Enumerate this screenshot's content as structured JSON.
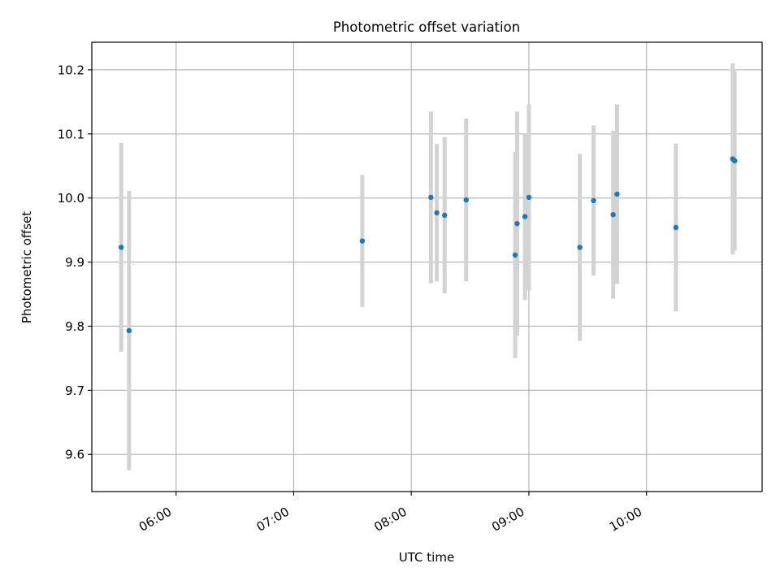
{
  "chart_data": {
    "type": "scatter",
    "title": "Photometric offset variation",
    "xlabel": "UTC time",
    "ylabel": "Photometric offset",
    "x_format": "HH:MM",
    "xlim": [
      "05:17",
      "10:59"
    ],
    "ylim": [
      9.542,
      10.243
    ],
    "x_ticks": [
      "06:00",
      "07:00",
      "08:00",
      "09:00",
      "10:00"
    ],
    "y_ticks": [
      "9.6",
      "9.7",
      "9.8",
      "9.9",
      "10.0",
      "10.1",
      "10.2"
    ],
    "grid": true,
    "colors": {
      "point": "#1f77b4",
      "errorbar": "#d3d3d3",
      "grid": "#b0b0b0",
      "axes": "#000000"
    },
    "series": [
      {
        "points": [
          {
            "x": "05:32",
            "y": 9.923,
            "yerr": 0.163
          },
          {
            "x": "05:36",
            "y": 9.793,
            "yerr": 0.218
          },
          {
            "x": "07:35",
            "y": 9.933,
            "yerr": 0.103
          },
          {
            "x": "08:10",
            "y": 10.001,
            "yerr": 0.134
          },
          {
            "x": "08:13",
            "y": 9.977,
            "yerr": 0.107
          },
          {
            "x": "08:17",
            "y": 9.973,
            "yerr": 0.122
          },
          {
            "x": "08:28",
            "y": 9.997,
            "yerr": 0.127
          },
          {
            "x": "08:53",
            "y": 9.911,
            "yerr": 0.161
          },
          {
            "x": "08:54",
            "y": 9.96,
            "yerr": 0.175
          },
          {
            "x": "08:58",
            "y": 9.971,
            "yerr": 0.13
          },
          {
            "x": "09:00",
            "y": 10.001,
            "yerr": 0.145
          },
          {
            "x": "09:26",
            "y": 9.923,
            "yerr": 0.146
          },
          {
            "x": "09:33",
            "y": 9.996,
            "yerr": 0.117
          },
          {
            "x": "09:43",
            "y": 9.974,
            "yerr": 0.131
          },
          {
            "x": "09:45",
            "y": 10.006,
            "yerr": 0.14
          },
          {
            "x": "10:15",
            "y": 9.954,
            "yerr": 0.131
          },
          {
            "x": "10:44",
            "y": 10.061,
            "yerr": 0.149
          },
          {
            "x": "10:45",
            "y": 10.058,
            "yerr": 0.14
          }
        ]
      }
    ]
  }
}
